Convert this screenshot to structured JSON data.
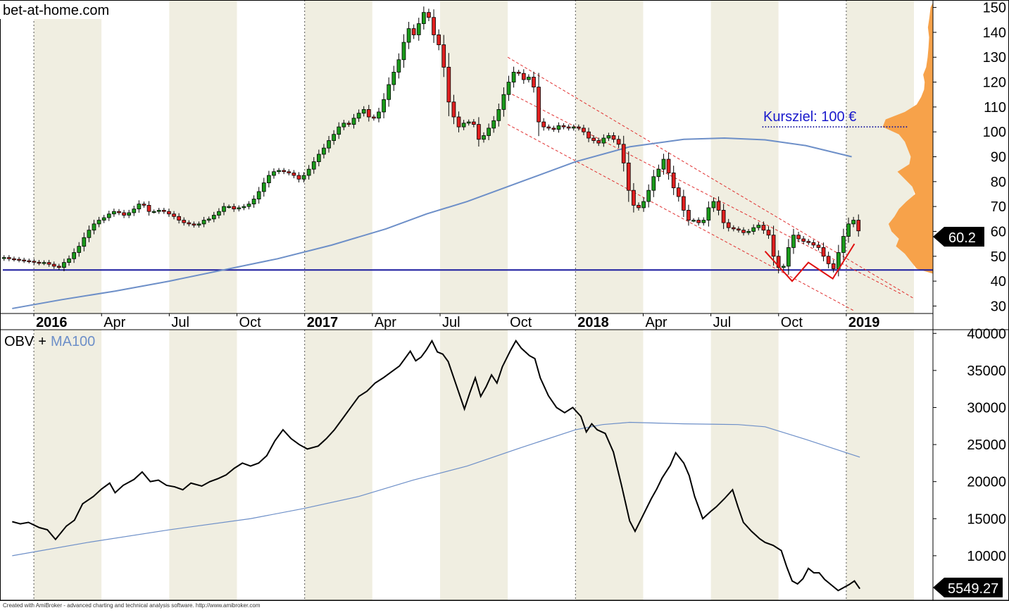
{
  "chart_data": [
    {
      "type": "candlestick",
      "title": "bet-at-home.com",
      "y_axis_ticks": [
        30,
        40,
        50,
        60,
        70,
        80,
        90,
        100,
        110,
        120,
        130,
        140,
        150
      ],
      "ylim": [
        27,
        153
      ],
      "x_labels": [
        "2016",
        "Apr",
        "Jul",
        "Oct",
        "2017",
        "Apr",
        "Jul",
        "Oct",
        "2018",
        "Apr",
        "Jul",
        "Oct",
        "2019"
      ],
      "x_labels_bold": [
        "2016",
        "2017",
        "2018",
        "2019"
      ],
      "last_price_label": "60.2",
      "annotation": "Kursziel: 100 €",
      "target_level": 102,
      "support_level": 44.5,
      "weekly_closes": [
        49.5,
        49,
        48.8,
        48.5,
        48.2,
        48,
        47.6,
        47.3,
        47.5,
        46.8,
        46,
        45.5,
        47.5,
        49,
        51.5,
        54,
        57.5,
        60.5,
        63,
        64.5,
        65.5,
        67,
        68,
        67.5,
        66.5,
        67.5,
        69,
        71,
        70.5,
        68,
        68,
        68.5,
        68,
        67,
        66,
        64.5,
        63.5,
        63,
        62.5,
        63,
        64.5,
        65,
        66.5,
        68,
        70,
        70,
        69,
        69.5,
        70,
        71,
        73,
        76,
        79.5,
        82.5,
        84,
        84.5,
        84,
        83.5,
        82.5,
        81,
        82.5,
        85,
        88,
        91,
        93.5,
        96.5,
        99,
        102,
        103.5,
        103,
        105.5,
        107.5,
        109,
        106,
        105.5,
        108,
        113,
        119,
        124,
        129,
        136,
        141.5,
        139,
        143.5,
        148,
        146,
        139,
        135,
        126,
        112,
        106,
        102,
        103.5,
        104,
        103,
        97,
        98.5,
        101.5,
        104.5,
        109,
        115,
        120,
        124,
        123.5,
        121,
        122,
        118,
        104,
        102,
        101.5,
        101,
        102.5,
        102,
        101.5,
        102,
        101.5,
        100,
        97.5,
        96.5,
        95.5,
        97.5,
        98.5,
        97,
        95,
        87.5,
        76.5,
        70.5,
        69.5,
        72,
        76.5,
        82,
        85,
        89,
        83.5,
        77.5,
        74,
        68.5,
        64.5,
        64.5,
        63.5,
        64.5,
        69.5,
        72,
        68.5,
        63.5,
        61.5,
        61,
        60.5,
        59.5,
        60,
        61.5,
        62.5,
        60.5,
        58.5,
        50,
        45.5,
        46,
        53.5,
        58.5,
        57,
        56,
        55.5,
        54.5,
        53.5,
        50,
        47,
        45,
        51.5,
        58,
        63,
        64.5,
        60.2
      ],
      "ma_curve": [
        {
          "x": 2015.92,
          "y": 29
        },
        {
          "x": 2016.1,
          "y": 32.5
        },
        {
          "x": 2016.3,
          "y": 36
        },
        {
          "x": 2016.5,
          "y": 40
        },
        {
          "x": 2016.7,
          "y": 44.5
        },
        {
          "x": 2016.9,
          "y": 49
        },
        {
          "x": 2017.1,
          "y": 54.5
        },
        {
          "x": 2017.3,
          "y": 61
        },
        {
          "x": 2017.45,
          "y": 67
        },
        {
          "x": 2017.6,
          "y": 72
        },
        {
          "x": 2017.8,
          "y": 80
        },
        {
          "x": 2018.0,
          "y": 88
        },
        {
          "x": 2018.2,
          "y": 94
        },
        {
          "x": 2018.4,
          "y": 97
        },
        {
          "x": 2018.55,
          "y": 97.5
        },
        {
          "x": 2018.7,
          "y": 96.8
        },
        {
          "x": 2018.85,
          "y": 94.5
        },
        {
          "x": 2019.02,
          "y": 90
        }
      ],
      "channel": {
        "upper": [
          {
            "x": 2017.75,
            "y": 130
          },
          {
            "x": 2019.25,
            "y": 33
          }
        ],
        "middle": [
          {
            "x": 2017.75,
            "y": 116
          },
          {
            "x": 2019.2,
            "y": 35
          }
        ],
        "lower": [
          {
            "x": 2017.75,
            "y": 103
          },
          {
            "x": 2019.03,
            "y": 28
          }
        ]
      },
      "w_pattern": [
        {
          "x": 2018.7,
          "y": 52
        },
        {
          "x": 2018.8,
          "y": 40
        },
        {
          "x": 2018.86,
          "y": 47.5
        },
        {
          "x": 2018.95,
          "y": 41
        },
        {
          "x": 2019.03,
          "y": 55
        }
      ],
      "volume_profile": [
        {
          "price": 45,
          "size": 55
        },
        {
          "price": 48,
          "size": 75
        },
        {
          "price": 51,
          "size": 95
        },
        {
          "price": 54,
          "size": 125
        },
        {
          "price": 57,
          "size": 115
        },
        {
          "price": 60,
          "size": 140
        },
        {
          "price": 63,
          "size": 150
        },
        {
          "price": 66,
          "size": 130
        },
        {
          "price": 69,
          "size": 115
        },
        {
          "price": 72,
          "size": 90
        },
        {
          "price": 75,
          "size": 60
        },
        {
          "price": 78,
          "size": 70
        },
        {
          "price": 81,
          "size": 95
        },
        {
          "price": 84,
          "size": 120
        },
        {
          "price": 87,
          "size": 80
        },
        {
          "price": 90,
          "size": 75
        },
        {
          "price": 93,
          "size": 85
        },
        {
          "price": 96,
          "size": 95
        },
        {
          "price": 99,
          "size": 115
        },
        {
          "price": 102,
          "size": 170
        },
        {
          "price": 105,
          "size": 160
        },
        {
          "price": 108,
          "size": 95
        },
        {
          "price": 111,
          "size": 55
        },
        {
          "price": 114,
          "size": 40
        },
        {
          "price": 117,
          "size": 30
        },
        {
          "price": 120,
          "size": 28
        },
        {
          "price": 123,
          "size": 33
        },
        {
          "price": 126,
          "size": 23
        },
        {
          "price": 130,
          "size": 18
        },
        {
          "price": 134,
          "size": 15
        },
        {
          "price": 138,
          "size": 13
        },
        {
          "price": 142,
          "size": 17
        },
        {
          "price": 146,
          "size": 12
        },
        {
          "price": 150,
          "size": 8
        }
      ]
    },
    {
      "type": "line",
      "title": "OBV",
      "title_connector": "+",
      "series": [
        {
          "name": "OBV",
          "values": [
            {
              "x": 2015.92,
              "y": 14600
            },
            {
              "x": 2015.95,
              "y": 14300
            },
            {
              "x": 2015.98,
              "y": 14500
            },
            {
              "x": 2016.02,
              "y": 13800
            },
            {
              "x": 2016.05,
              "y": 13500
            },
            {
              "x": 2016.08,
              "y": 12200
            },
            {
              "x": 2016.12,
              "y": 14000
            },
            {
              "x": 2016.15,
              "y": 14800
            },
            {
              "x": 2016.18,
              "y": 17000
            },
            {
              "x": 2016.22,
              "y": 18000
            },
            {
              "x": 2016.25,
              "y": 19000
            },
            {
              "x": 2016.28,
              "y": 19800
            },
            {
              "x": 2016.3,
              "y": 18500
            },
            {
              "x": 2016.33,
              "y": 19500
            },
            {
              "x": 2016.37,
              "y": 20300
            },
            {
              "x": 2016.4,
              "y": 21300
            },
            {
              "x": 2016.43,
              "y": 20000
            },
            {
              "x": 2016.46,
              "y": 20200
            },
            {
              "x": 2016.49,
              "y": 19500
            },
            {
              "x": 2016.52,
              "y": 19300
            },
            {
              "x": 2016.55,
              "y": 18900
            },
            {
              "x": 2016.58,
              "y": 19800
            },
            {
              "x": 2016.62,
              "y": 19400
            },
            {
              "x": 2016.65,
              "y": 20000
            },
            {
              "x": 2016.68,
              "y": 20400
            },
            {
              "x": 2016.71,
              "y": 20900
            },
            {
              "x": 2016.74,
              "y": 21800
            },
            {
              "x": 2016.77,
              "y": 22500
            },
            {
              "x": 2016.8,
              "y": 22100
            },
            {
              "x": 2016.83,
              "y": 22500
            },
            {
              "x": 2016.86,
              "y": 23500
            },
            {
              "x": 2016.89,
              "y": 25500
            },
            {
              "x": 2016.92,
              "y": 27000
            },
            {
              "x": 2016.95,
              "y": 25800
            },
            {
              "x": 2016.98,
              "y": 25000
            },
            {
              "x": 2017.01,
              "y": 24400
            },
            {
              "x": 2017.05,
              "y": 24800
            },
            {
              "x": 2017.08,
              "y": 25800
            },
            {
              "x": 2017.11,
              "y": 27000
            },
            {
              "x": 2017.14,
              "y": 28500
            },
            {
              "x": 2017.17,
              "y": 30000
            },
            {
              "x": 2017.2,
              "y": 31500
            },
            {
              "x": 2017.23,
              "y": 32200
            },
            {
              "x": 2017.26,
              "y": 33300
            },
            {
              "x": 2017.29,
              "y": 34000
            },
            {
              "x": 2017.32,
              "y": 34800
            },
            {
              "x": 2017.35,
              "y": 35600
            },
            {
              "x": 2017.37,
              "y": 36600
            },
            {
              "x": 2017.39,
              "y": 37600
            },
            {
              "x": 2017.41,
              "y": 36300
            },
            {
              "x": 2017.43,
              "y": 36800
            },
            {
              "x": 2017.45,
              "y": 37800
            },
            {
              "x": 2017.47,
              "y": 39000
            },
            {
              "x": 2017.49,
              "y": 37500
            },
            {
              "x": 2017.51,
              "y": 37200
            },
            {
              "x": 2017.53,
              "y": 36200
            },
            {
              "x": 2017.56,
              "y": 33000
            },
            {
              "x": 2017.59,
              "y": 29800
            },
            {
              "x": 2017.61,
              "y": 32000
            },
            {
              "x": 2017.63,
              "y": 34000
            },
            {
              "x": 2017.65,
              "y": 31500
            },
            {
              "x": 2017.67,
              "y": 32800
            },
            {
              "x": 2017.69,
              "y": 34400
            },
            {
              "x": 2017.71,
              "y": 33300
            },
            {
              "x": 2017.73,
              "y": 35500
            },
            {
              "x": 2017.76,
              "y": 37700
            },
            {
              "x": 2017.78,
              "y": 39000
            },
            {
              "x": 2017.8,
              "y": 38000
            },
            {
              "x": 2017.83,
              "y": 37000
            },
            {
              "x": 2017.85,
              "y": 36600
            },
            {
              "x": 2017.87,
              "y": 34000
            },
            {
              "x": 2017.9,
              "y": 31600
            },
            {
              "x": 2017.93,
              "y": 30000
            },
            {
              "x": 2017.96,
              "y": 29300
            },
            {
              "x": 2017.99,
              "y": 30000
            },
            {
              "x": 2018.02,
              "y": 28800
            },
            {
              "x": 2018.04,
              "y": 26700
            },
            {
              "x": 2018.06,
              "y": 27800
            },
            {
              "x": 2018.08,
              "y": 27000
            },
            {
              "x": 2018.11,
              "y": 26500
            },
            {
              "x": 2018.14,
              "y": 24000
            },
            {
              "x": 2018.17,
              "y": 19500
            },
            {
              "x": 2018.2,
              "y": 14700
            },
            {
              "x": 2018.22,
              "y": 13300
            },
            {
              "x": 2018.25,
              "y": 15500
            },
            {
              "x": 2018.28,
              "y": 17700
            },
            {
              "x": 2018.3,
              "y": 19000
            },
            {
              "x": 2018.32,
              "y": 20500
            },
            {
              "x": 2018.35,
              "y": 22200
            },
            {
              "x": 2018.37,
              "y": 23900
            },
            {
              "x": 2018.4,
              "y": 22500
            },
            {
              "x": 2018.42,
              "y": 20800
            },
            {
              "x": 2018.44,
              "y": 18000
            },
            {
              "x": 2018.47,
              "y": 15000
            },
            {
              "x": 2018.5,
              "y": 16000
            },
            {
              "x": 2018.52,
              "y": 16600
            },
            {
              "x": 2018.55,
              "y": 17700
            },
            {
              "x": 2018.58,
              "y": 18900
            },
            {
              "x": 2018.6,
              "y": 16600
            },
            {
              "x": 2018.62,
              "y": 14500
            },
            {
              "x": 2018.65,
              "y": 13300
            },
            {
              "x": 2018.68,
              "y": 12300
            },
            {
              "x": 2018.7,
              "y": 11800
            },
            {
              "x": 2018.73,
              "y": 11400
            },
            {
              "x": 2018.76,
              "y": 10700
            },
            {
              "x": 2018.78,
              "y": 8500
            },
            {
              "x": 2018.8,
              "y": 6600
            },
            {
              "x": 2018.82,
              "y": 6200
            },
            {
              "x": 2018.84,
              "y": 6900
            },
            {
              "x": 2018.86,
              "y": 8300
            },
            {
              "x": 2018.88,
              "y": 7700
            },
            {
              "x": 2018.9,
              "y": 7700
            },
            {
              "x": 2018.92,
              "y": 6800
            },
            {
              "x": 2018.95,
              "y": 5900
            },
            {
              "x": 2018.97,
              "y": 5300
            },
            {
              "x": 2018.99,
              "y": 5700
            },
            {
              "x": 2019.01,
              "y": 6100
            },
            {
              "x": 2019.03,
              "y": 6600
            },
            {
              "x": 2019.05,
              "y": 5549.27
            }
          ]
        },
        {
          "name": "MA100",
          "values": [
            {
              "x": 2015.92,
              "y": 10000
            },
            {
              "x": 2016.2,
              "y": 11800
            },
            {
              "x": 2016.5,
              "y": 13500
            },
            {
              "x": 2016.8,
              "y": 15000
            },
            {
              "x": 2017.0,
              "y": 16400
            },
            {
              "x": 2017.2,
              "y": 18000
            },
            {
              "x": 2017.4,
              "y": 20200
            },
            {
              "x": 2017.6,
              "y": 22100
            },
            {
              "x": 2017.8,
              "y": 24600
            },
            {
              "x": 2018.0,
              "y": 27000
            },
            {
              "x": 2018.1,
              "y": 27700
            },
            {
              "x": 2018.2,
              "y": 28000
            },
            {
              "x": 2018.4,
              "y": 27800
            },
            {
              "x": 2018.6,
              "y": 27700
            },
            {
              "x": 2018.7,
              "y": 27400
            },
            {
              "x": 2018.85,
              "y": 25700
            },
            {
              "x": 2019.05,
              "y": 23300
            }
          ]
        }
      ],
      "y_axis_ticks": [
        10000,
        15000,
        20000,
        25000,
        30000,
        35000,
        40000
      ],
      "ylim": [
        4000,
        40500
      ],
      "last_value_label": "5549.27",
      "colors": {
        "obv": "#000000",
        "ma": "#6d8fc8"
      }
    }
  ],
  "footer": "Created with AmiBroker - advanced charting and technical analysis software. http://www.amibroker.com",
  "colors": {
    "up": "#1a9b1a",
    "down": "#e02020",
    "band": "#f0eee1",
    "profile": "#f7a24a",
    "support": "#1a1a9e",
    "target_text": "#1a1acc",
    "ma_top": "#6d8fc8",
    "channel": "#e03030"
  }
}
